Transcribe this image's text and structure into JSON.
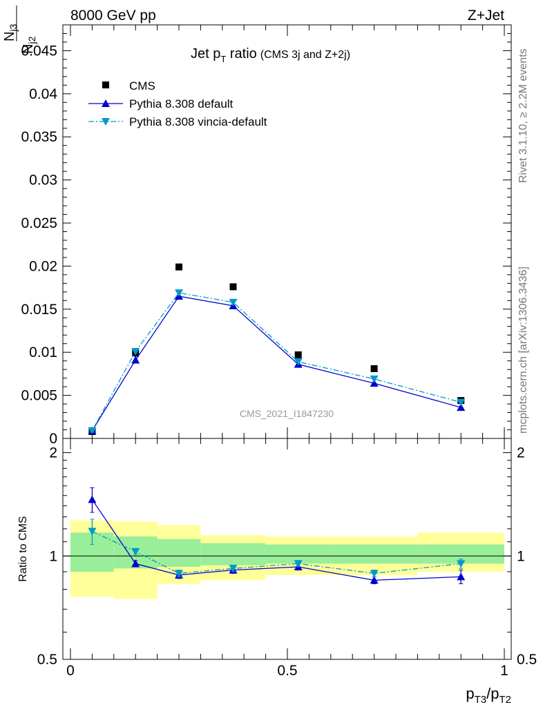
{
  "header": {
    "left": "8000 GeV pp",
    "right": "Z+Jet"
  },
  "side_labels": {
    "rivet": "Rivet 3.1.10, ≥ 2.2M events",
    "mcplots": "mcplots.cern.ch [arXiv:1306.3436]"
  },
  "chart_data": [
    {
      "type": "scatter",
      "title_main": "Jet p",
      "title_sub": "T",
      "title_rest": " ratio",
      "title_small": "(CMS 3j and Z+2j)",
      "watermark": "CMS_2021_I1847230",
      "ylabel_num_main": "N",
      "ylabel_num_sub": "j3",
      "ylabel_den_main": "N",
      "ylabel_den_sub": "j2",
      "xlim": [
        0,
        1
      ],
      "ylim": [
        0,
        0.048
      ],
      "yticks": [
        "0",
        "0.005",
        "0.01",
        "0.015",
        "0.02",
        "0.025",
        "0.03",
        "0.035",
        "0.04",
        "0.045"
      ],
      "ytick_values": [
        0,
        0.005,
        0.01,
        0.015,
        0.02,
        0.025,
        0.03,
        0.035,
        0.04,
        0.045
      ],
      "x": [
        0.05,
        0.15,
        0.25,
        0.375,
        0.525,
        0.7,
        0.9
      ],
      "legend_position": "top-left",
      "series": [
        {
          "name": "CMS",
          "color": "#000000",
          "marker": "square",
          "line": "none",
          "values": [
            0.0008,
            0.0099,
            0.0199,
            0.0176,
            0.0097,
            0.0081,
            0.0044
          ]
        },
        {
          "name": "Pythia 8.308 default",
          "color": "#0000cc",
          "marker": "triangle-up",
          "line": "solid",
          "values": [
            0.0009,
            0.0091,
            0.0165,
            0.0154,
            0.0086,
            0.0064,
            0.0036
          ]
        },
        {
          "name": "Pythia 8.308 vincia-default",
          "color": "#0099cc",
          "marker": "triangle-down",
          "line": "dashdot",
          "values": [
            0.0009,
            0.0101,
            0.0169,
            0.0158,
            0.0089,
            0.0069,
            0.0042
          ]
        }
      ]
    },
    {
      "type": "line",
      "ylabel": "Ratio to CMS",
      "xlabel_main_1": "p",
      "xlabel_sub_1": "T3",
      "xlabel_slash": "/p",
      "xlabel_sub_2": "T2",
      "xlim": [
        0,
        1
      ],
      "ylim": [
        0.5,
        2.2
      ],
      "yscale": "log",
      "yticks": [
        "0.5",
        "1",
        "2"
      ],
      "ytick_values": [
        0.5,
        1,
        2
      ],
      "xticks": [
        "0",
        "0.5",
        "1"
      ],
      "xtick_values": [
        0,
        0.5,
        1
      ],
      "reference_line": 1,
      "bins": [
        [
          0,
          0.1
        ],
        [
          0.1,
          0.2
        ],
        [
          0.2,
          0.3
        ],
        [
          0.3,
          0.45
        ],
        [
          0.45,
          0.6
        ],
        [
          0.6,
          0.8
        ],
        [
          0.8,
          1.0
        ]
      ],
      "band_yellow": [
        [
          0.76,
          1.27
        ],
        [
          0.75,
          1.26
        ],
        [
          0.83,
          1.23
        ],
        [
          0.85,
          1.15
        ],
        [
          0.88,
          1.14
        ],
        [
          0.88,
          1.14
        ],
        [
          0.9,
          1.17
        ]
      ],
      "band_green": [
        [
          0.9,
          1.17
        ],
        [
          0.92,
          1.14
        ],
        [
          0.93,
          1.12
        ],
        [
          0.94,
          1.09
        ],
        [
          0.95,
          1.08
        ],
        [
          0.95,
          1.08
        ],
        [
          0.95,
          1.08
        ]
      ],
      "x": [
        0.05,
        0.15,
        0.25,
        0.375,
        0.525,
        0.7,
        0.9
      ],
      "series": [
        {
          "name": "Pythia 8.308 default",
          "color": "#0000cc",
          "marker": "triangle-up",
          "line": "solid",
          "values": [
            1.46,
            0.95,
            0.88,
            0.91,
            0.93,
            0.85,
            0.87
          ],
          "errors": [
            0.12,
            0.02,
            0.02,
            0.02,
            0.02,
            0.02,
            0.04
          ]
        },
        {
          "name": "Pythia 8.308 vincia-default",
          "color": "#0099cc",
          "marker": "triangle-down",
          "line": "dashdot",
          "values": [
            1.18,
            1.03,
            0.89,
            0.92,
            0.95,
            0.89,
            0.95
          ],
          "errors": [
            0.1,
            0.02,
            0.02,
            0.02,
            0.02,
            0.02,
            0.03
          ]
        }
      ]
    }
  ]
}
